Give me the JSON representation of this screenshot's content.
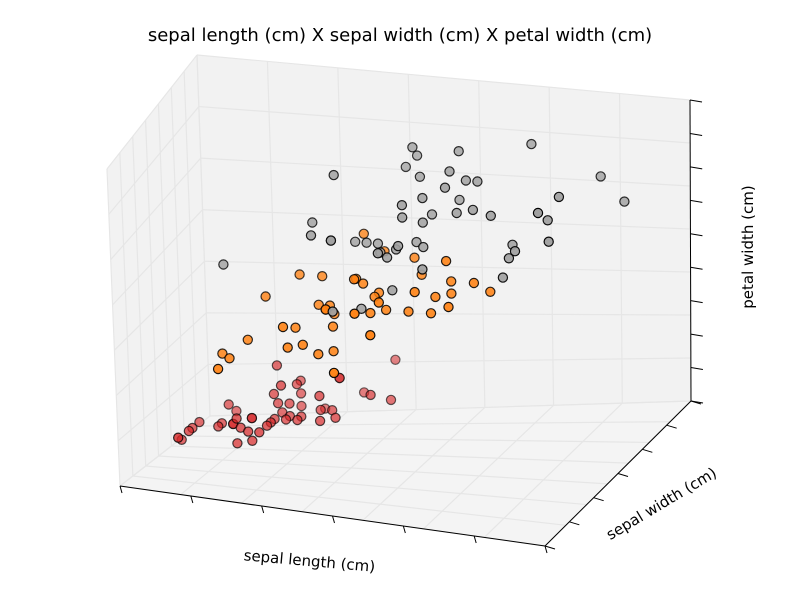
{
  "chart_data": {
    "type": "scatter",
    "projection": "3d",
    "title": "sepal length (cm) X sepal width (cm) X petal width (cm)",
    "xlabel": "sepal length (cm)",
    "ylabel": "sepal width (cm)",
    "zlabel": "petal width (cm)",
    "tick_labels_shown": false,
    "grid": true,
    "legend": "none",
    "colors": {
      "class_0": "#d62728",
      "class_1": "#ff7f0e",
      "class_2": "#a0a0a0",
      "pane": "#f2f2f2",
      "grid": "#e6e6e6"
    },
    "series": [
      {
        "color": "#d62728",
        "points": [
          [
            5.1,
            3.5,
            0.2
          ],
          [
            4.9,
            3.0,
            0.2
          ],
          [
            4.7,
            3.2,
            0.2
          ],
          [
            4.6,
            3.1,
            0.2
          ],
          [
            5.0,
            3.6,
            0.2
          ],
          [
            5.4,
            3.9,
            0.4
          ],
          [
            4.6,
            3.4,
            0.3
          ],
          [
            5.0,
            3.4,
            0.2
          ],
          [
            4.4,
            2.9,
            0.2
          ],
          [
            4.9,
            3.1,
            0.1
          ],
          [
            5.4,
            3.7,
            0.2
          ],
          [
            4.8,
            3.4,
            0.2
          ],
          [
            4.8,
            3.0,
            0.1
          ],
          [
            4.3,
            3.0,
            0.1
          ],
          [
            5.8,
            4.0,
            0.2
          ],
          [
            5.7,
            4.4,
            0.4
          ],
          [
            5.4,
            3.9,
            0.4
          ],
          [
            5.1,
            3.5,
            0.3
          ],
          [
            5.7,
            3.8,
            0.3
          ],
          [
            5.1,
            3.8,
            0.3
          ],
          [
            5.4,
            3.4,
            0.2
          ],
          [
            5.1,
            3.7,
            0.4
          ],
          [
            4.6,
            3.6,
            0.2
          ],
          [
            5.1,
            3.3,
            0.5
          ],
          [
            4.8,
            3.4,
            0.2
          ],
          [
            5.0,
            3.0,
            0.2
          ],
          [
            5.0,
            3.4,
            0.4
          ],
          [
            5.2,
            3.5,
            0.2
          ],
          [
            5.2,
            3.4,
            0.2
          ],
          [
            4.7,
            3.2,
            0.2
          ],
          [
            4.8,
            3.1,
            0.2
          ],
          [
            5.4,
            3.4,
            0.4
          ],
          [
            5.2,
            4.1,
            0.1
          ],
          [
            5.5,
            4.2,
            0.2
          ],
          [
            5.0,
            3.2,
            0.2
          ],
          [
            5.5,
            3.5,
            0.2
          ],
          [
            4.4,
            3.0,
            0.2
          ],
          [
            5.1,
            3.4,
            0.2
          ],
          [
            5.0,
            3.5,
            0.3
          ],
          [
            4.5,
            2.3,
            0.3
          ],
          [
            4.4,
            3.2,
            0.2
          ],
          [
            5.0,
            3.5,
            0.6
          ],
          [
            5.1,
            3.8,
            0.4
          ],
          [
            4.8,
            3.0,
            0.3
          ],
          [
            5.1,
            3.8,
            0.2
          ],
          [
            4.6,
            3.2,
            0.2
          ],
          [
            5.3,
            3.7,
            0.2
          ],
          [
            5.0,
            3.3,
            0.2
          ]
        ]
      },
      {
        "color": "#ff7f0e",
        "points": [
          [
            7.0,
            3.2,
            1.4
          ],
          [
            6.4,
            3.2,
            1.5
          ],
          [
            6.9,
            3.1,
            1.5
          ],
          [
            5.5,
            2.3,
            1.3
          ],
          [
            6.5,
            2.8,
            1.5
          ],
          [
            5.7,
            2.8,
            1.3
          ],
          [
            6.3,
            3.3,
            1.6
          ],
          [
            4.9,
            2.4,
            1.0
          ],
          [
            6.6,
            2.9,
            1.3
          ],
          [
            5.2,
            2.7,
            1.4
          ],
          [
            5.0,
            2.0,
            1.0
          ],
          [
            5.9,
            3.0,
            1.5
          ],
          [
            6.0,
            2.2,
            1.0
          ],
          [
            6.1,
            2.9,
            1.4
          ],
          [
            5.6,
            2.9,
            1.3
          ],
          [
            6.7,
            3.1,
            1.4
          ],
          [
            5.6,
            3.0,
            1.5
          ],
          [
            5.8,
            2.7,
            1.0
          ],
          [
            6.2,
            2.2,
            1.5
          ],
          [
            5.6,
            2.5,
            1.1
          ],
          [
            5.9,
            3.2,
            1.8
          ],
          [
            6.1,
            2.8,
            1.3
          ],
          [
            6.3,
            2.5,
            1.5
          ],
          [
            6.4,
            2.9,
            1.3
          ],
          [
            6.6,
            3.0,
            1.4
          ],
          [
            6.8,
            2.8,
            1.4
          ],
          [
            6.7,
            3.0,
            1.7
          ],
          [
            6.0,
            2.9,
            1.5
          ],
          [
            5.7,
            2.6,
            1.0
          ],
          [
            5.5,
            2.4,
            1.1
          ],
          [
            5.8,
            2.7,
            1.2
          ],
          [
            6.0,
            2.7,
            1.6
          ],
          [
            5.4,
            3.0,
            1.5
          ],
          [
            6.0,
            3.4,
            1.6
          ],
          [
            6.7,
            3.1,
            1.5
          ],
          [
            6.3,
            2.3,
            1.3
          ],
          [
            5.5,
            2.6,
            1.2
          ],
          [
            6.1,
            3.0,
            1.4
          ],
          [
            5.0,
            2.3,
            1.0
          ],
          [
            5.7,
            3.0,
            1.2
          ],
          [
            5.7,
            2.9,
            1.3
          ],
          [
            6.2,
            2.9,
            1.3
          ],
          [
            5.1,
            2.5,
            1.1
          ],
          [
            5.7,
            2.8,
            1.3
          ]
        ]
      },
      {
        "color": "#a0a0a0",
        "points": [
          [
            6.3,
            3.3,
            2.5
          ],
          [
            5.8,
            2.7,
            1.9
          ],
          [
            7.1,
            3.0,
            2.1
          ],
          [
            6.3,
            2.9,
            1.8
          ],
          [
            6.5,
            3.0,
            2.2
          ],
          [
            7.6,
            3.0,
            2.1
          ],
          [
            4.9,
            2.5,
            1.7
          ],
          [
            7.3,
            2.9,
            1.8
          ],
          [
            6.7,
            2.5,
            1.8
          ],
          [
            7.2,
            3.6,
            2.5
          ],
          [
            6.5,
            3.2,
            2.0
          ],
          [
            6.4,
            2.7,
            1.9
          ],
          [
            6.8,
            3.0,
            2.1
          ],
          [
            5.7,
            2.5,
            2.0
          ],
          [
            5.8,
            2.8,
            2.4
          ],
          [
            6.4,
            3.2,
            2.3
          ],
          [
            6.5,
            3.0,
            1.8
          ],
          [
            7.7,
            3.8,
            2.2
          ],
          [
            7.7,
            2.6,
            2.3
          ],
          [
            6.0,
            2.2,
            1.5
          ],
          [
            6.9,
            3.2,
            2.3
          ],
          [
            5.6,
            2.8,
            2.0
          ],
          [
            7.7,
            2.8,
            2.0
          ],
          [
            6.3,
            2.7,
            1.8
          ],
          [
            6.7,
            3.3,
            2.1
          ],
          [
            7.2,
            3.2,
            1.8
          ],
          [
            6.2,
            2.8,
            1.8
          ],
          [
            6.1,
            3.0,
            1.8
          ],
          [
            6.4,
            2.8,
            2.1
          ],
          [
            7.2,
            3.0,
            1.6
          ],
          [
            7.4,
            2.8,
            1.9
          ],
          [
            7.9,
            3.8,
            2.0
          ],
          [
            6.4,
            2.8,
            2.2
          ],
          [
            6.3,
            2.8,
            1.5
          ],
          [
            6.1,
            2.6,
            1.4
          ],
          [
            7.7,
            3.0,
            2.3
          ],
          [
            6.3,
            3.4,
            2.4
          ],
          [
            6.4,
            3.1,
            1.8
          ],
          [
            6.0,
            3.0,
            1.8
          ],
          [
            6.9,
            3.1,
            2.1
          ],
          [
            6.7,
            3.1,
            2.4
          ],
          [
            5.8,
            2.7,
            1.9
          ],
          [
            6.8,
            3.2,
            2.3
          ],
          [
            6.7,
            3.3,
            2.5
          ],
          [
            6.7,
            3.0,
            2.3
          ],
          [
            6.3,
            2.5,
            1.9
          ],
          [
            6.5,
            3.0,
            2.0
          ],
          [
            6.2,
            3.4,
            2.3
          ],
          [
            5.9,
            3.0,
            1.8
          ]
        ]
      }
    ]
  }
}
